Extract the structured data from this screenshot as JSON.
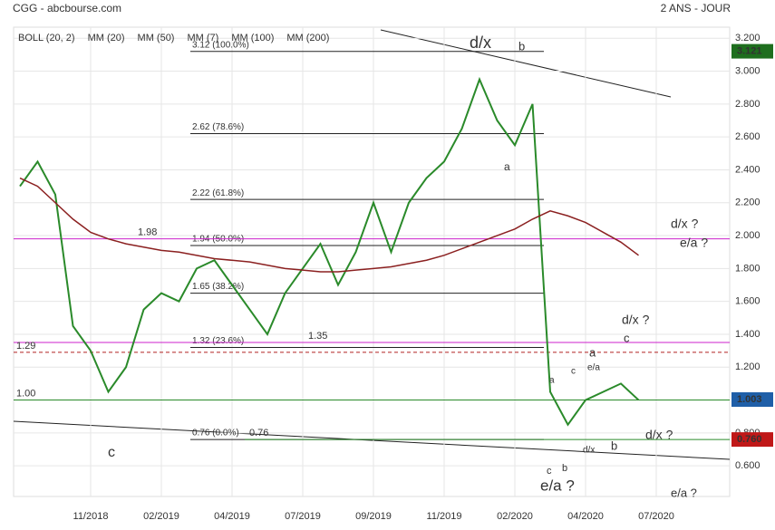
{
  "chart_data": {
    "type": "line",
    "header": {
      "title": "CGG - abcbourse.com",
      "period": "2 ANS - JOUR"
    },
    "indicators": [
      {
        "name": "BOLL (20, 2)",
        "color": "#555555"
      },
      {
        "name": "MM (20)",
        "color": "#4a7fd6"
      },
      {
        "name": "MM (50)",
        "color": "#e03030"
      },
      {
        "name": "MM (7)",
        "color": "#2a8a2a"
      },
      {
        "name": "MM (100)",
        "color": "#f08a20"
      },
      {
        "name": "MM (200)",
        "color": "#8b2020"
      }
    ],
    "categories": [
      null,
      null,
      null,
      null,
      "11/2018",
      null,
      null,
      null,
      "02/2019",
      null,
      null,
      null,
      "04/2019",
      null,
      null,
      null,
      "07/2019",
      null,
      null,
      null,
      "09/2019",
      null,
      null,
      null,
      "11/2019",
      null,
      null,
      null,
      "02/2020",
      null,
      null,
      null,
      "04/2020",
      null,
      null,
      null,
      "07/2020"
    ],
    "series": [
      {
        "name": "CGG",
        "color": "#2a8a2a",
        "values": [
          2.3,
          2.45,
          2.25,
          1.45,
          1.3,
          1.05,
          1.2,
          1.55,
          1.65,
          1.6,
          1.8,
          1.85,
          1.7,
          1.55,
          1.4,
          1.65,
          1.8,
          1.95,
          1.7,
          1.9,
          2.2,
          1.9,
          2.2,
          2.35,
          2.45,
          2.65,
          2.95,
          2.7,
          2.55,
          2.8,
          1.05,
          0.85,
          1.0,
          1.05,
          1.1,
          1.0,
          null
        ]
      },
      {
        "name": "MM (200)",
        "color": "#8b2020",
        "values": [
          2.35,
          2.3,
          2.2,
          2.1,
          2.02,
          1.98,
          1.95,
          1.93,
          1.91,
          1.9,
          1.88,
          1.86,
          1.85,
          1.84,
          1.82,
          1.8,
          1.79,
          1.78,
          1.78,
          1.79,
          1.8,
          1.81,
          1.83,
          1.85,
          1.88,
          1.92,
          1.96,
          2.0,
          2.04,
          2.1,
          2.15,
          2.12,
          2.08,
          2.02,
          1.96,
          1.88,
          null
        ]
      }
    ],
    "ylim": [
      0.43,
      3.24
    ],
    "yticks": [
      {
        "value": 0.6,
        "label": "0.600"
      },
      {
        "value": 0.8,
        "label": "0.800"
      },
      {
        "value": 1.0,
        "label": "1.000"
      },
      {
        "value": 1.2,
        "label": "1.200"
      },
      {
        "value": 1.4,
        "label": "1.400"
      },
      {
        "value": 1.6,
        "label": "1.600"
      },
      {
        "value": 1.8,
        "label": "1.800"
      },
      {
        "value": 2.0,
        "label": "2.000"
      },
      {
        "value": 2.2,
        "label": "2.200"
      },
      {
        "value": 2.4,
        "label": "2.400"
      },
      {
        "value": 2.6,
        "label": "2.600"
      },
      {
        "value": 2.8,
        "label": "2.800"
      },
      {
        "value": 3.0,
        "label": "3.000"
      },
      {
        "value": 3.2,
        "label": "3.200"
      }
    ],
    "grid": true,
    "fib_levels": [
      {
        "value": 3.12,
        "label": "3.12  (100.0%)"
      },
      {
        "value": 2.62,
        "label": "2.62  (78.6%)"
      },
      {
        "value": 2.22,
        "label": "2.22  (61.8%)"
      },
      {
        "value": 1.94,
        "label": "1.94  (50.0%)"
      },
      {
        "value": 1.65,
        "label": "1.65  (38.2%)"
      },
      {
        "value": 1.32,
        "label": "1.32  (23.6%)"
      },
      {
        "value": 0.76,
        "label": "0.76  (0.0%)"
      }
    ],
    "lines": [
      {
        "value": 1.98,
        "label": "1.98",
        "color": "#cc22cc"
      },
      {
        "value": 1.35,
        "label": "1.35",
        "color": "#cc22cc"
      },
      {
        "value": 1.29,
        "label": "1.29",
        "color": "#b22222"
      },
      {
        "value": 1.0,
        "label": "1.00",
        "color": "#2a8a2a"
      },
      {
        "value": 0.76,
        "label": "0.76",
        "color": "#2a8a2a"
      }
    ],
    "price_tags": [
      {
        "value": 3.121,
        "label": "3.121",
        "color": "#1e6e1e"
      },
      {
        "value": 1.003,
        "label": "1.003",
        "color": "#1f5fa8"
      },
      {
        "value": 0.76,
        "label": "0.760",
        "color": "#c01818"
      }
    ],
    "annotations": [
      "d/x",
      "b",
      "a",
      "c",
      "d/x ?",
      "e/a ?",
      "d/x ?",
      "a",
      "c",
      "e/a",
      "c",
      "a",
      "b",
      "d/x",
      "d/x ?",
      "e/a ?",
      "c",
      "b",
      "e/a ?"
    ]
  }
}
